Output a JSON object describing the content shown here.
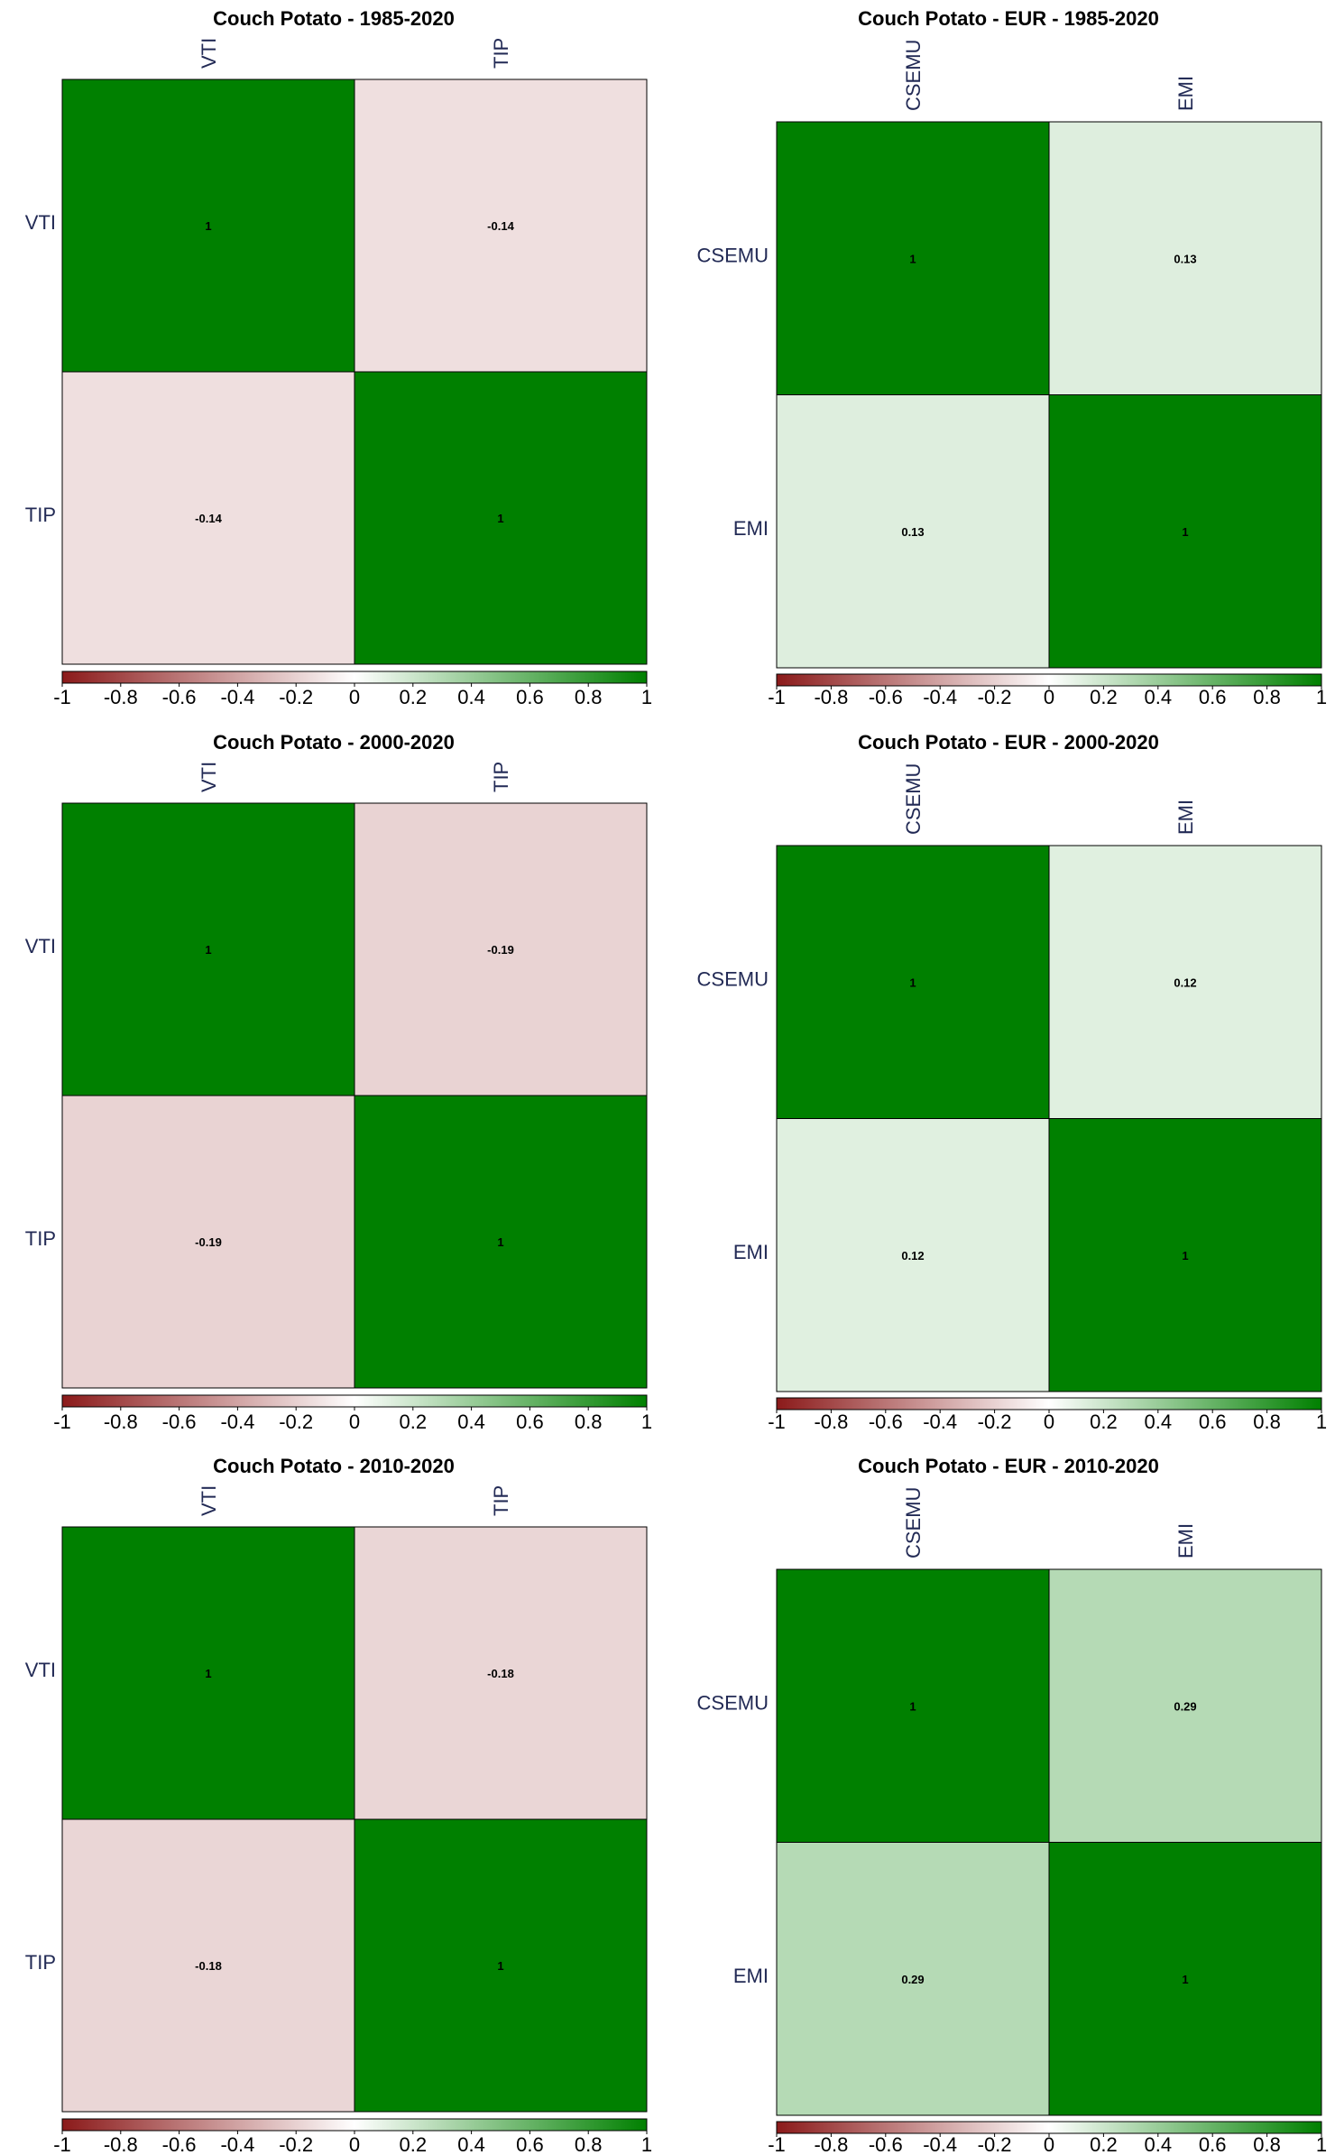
{
  "chart_data": [
    {
      "type": "heatmap",
      "title": "Couch Potato - 1985-2020",
      "labels": [
        "VTI",
        "TIP"
      ],
      "matrix": [
        [
          1,
          -0.14
        ],
        [
          -0.14,
          1
        ]
      ],
      "value_text": [
        [
          "1",
          "-0.14"
        ],
        [
          "-0.14",
          "1"
        ]
      ],
      "colorbar": {
        "range": [
          -1,
          1
        ],
        "ticks": [
          "-1",
          "-0.8",
          "-0.6",
          "-0.4",
          "-0.2",
          "0",
          "0.2",
          "0.4",
          "0.6",
          "0.8",
          "1"
        ]
      }
    },
    {
      "type": "heatmap",
      "title": "Couch Potato - EUR - 1985-2020",
      "labels": [
        "CSEMU",
        "EMI"
      ],
      "matrix": [
        [
          1,
          0.13
        ],
        [
          0.13,
          1
        ]
      ],
      "value_text": [
        [
          "1",
          "0.13"
        ],
        [
          "0.13",
          "1"
        ]
      ],
      "colorbar": {
        "range": [
          -1,
          1
        ],
        "ticks": [
          "-1",
          "-0.8",
          "-0.6",
          "-0.4",
          "-0.2",
          "0",
          "0.2",
          "0.4",
          "0.6",
          "0.8",
          "1"
        ]
      }
    },
    {
      "type": "heatmap",
      "title": "Couch Potato - 2000-2020",
      "labels": [
        "VTI",
        "TIP"
      ],
      "matrix": [
        [
          1,
          -0.19
        ],
        [
          -0.19,
          1
        ]
      ],
      "value_text": [
        [
          "1",
          "-0.19"
        ],
        [
          "-0.19",
          "1"
        ]
      ],
      "colorbar": {
        "range": [
          -1,
          1
        ],
        "ticks": [
          "-1",
          "-0.8",
          "-0.6",
          "-0.4",
          "-0.2",
          "0",
          "0.2",
          "0.4",
          "0.6",
          "0.8",
          "1"
        ]
      }
    },
    {
      "type": "heatmap",
      "title": "Couch Potato - EUR - 2000-2020",
      "labels": [
        "CSEMU",
        "EMI"
      ],
      "matrix": [
        [
          1,
          0.12
        ],
        [
          0.12,
          1
        ]
      ],
      "value_text": [
        [
          "1",
          "0.12"
        ],
        [
          "0.12",
          "1"
        ]
      ],
      "colorbar": {
        "range": [
          -1,
          1
        ],
        "ticks": [
          "-1",
          "-0.8",
          "-0.6",
          "-0.4",
          "-0.2",
          "0",
          "0.2",
          "0.4",
          "0.6",
          "0.8",
          "1"
        ]
      }
    },
    {
      "type": "heatmap",
      "title": "Couch Potato - 2010-2020",
      "labels": [
        "VTI",
        "TIP"
      ],
      "matrix": [
        [
          1,
          -0.18
        ],
        [
          -0.18,
          1
        ]
      ],
      "value_text": [
        [
          "1",
          "-0.18"
        ],
        [
          "-0.18",
          "1"
        ]
      ],
      "colorbar": {
        "range": [
          -1,
          1
        ],
        "ticks": [
          "-1",
          "-0.8",
          "-0.6",
          "-0.4",
          "-0.2",
          "0",
          "0.2",
          "0.4",
          "0.6",
          "0.8",
          "1"
        ]
      }
    },
    {
      "type": "heatmap",
      "title": "Couch Potato - EUR - 2010-2020",
      "labels": [
        "CSEMU",
        "EMI"
      ],
      "matrix": [
        [
          1,
          0.29
        ],
        [
          0.29,
          1
        ]
      ],
      "value_text": [
        [
          "1",
          "0.29"
        ],
        [
          "0.29",
          "1"
        ]
      ],
      "colorbar": {
        "range": [
          -1,
          1
        ],
        "ticks": [
          "-1",
          "-0.8",
          "-0.6",
          "-0.4",
          "-0.2",
          "0",
          "0.2",
          "0.4",
          "0.6",
          "0.8",
          "1"
        ]
      }
    }
  ],
  "colors": {
    "negative": "#8b1a1a",
    "neutral": "#ffffff",
    "positive": "#008000",
    "border": "#000000"
  }
}
